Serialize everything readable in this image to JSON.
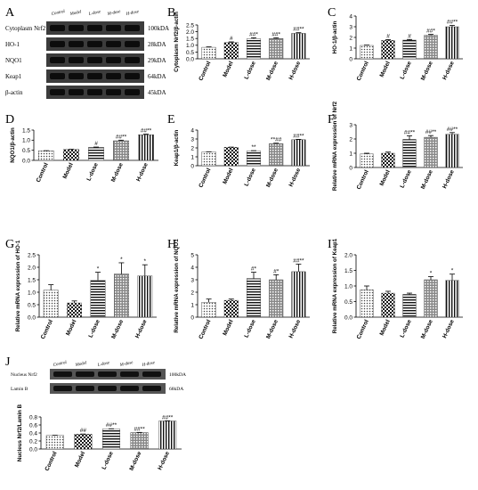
{
  "figure": {
    "panel_letters": [
      "A",
      "B",
      "C",
      "D",
      "E",
      "F",
      "G",
      "H",
      "I",
      "J"
    ]
  },
  "chart_data": [
    {
      "panel": "A",
      "type": "table",
      "title": "",
      "lanes": [
        "Control",
        "Model",
        "L-dose",
        "M-dose",
        "H-dose"
      ],
      "rows": [
        {
          "label": "Cytoplasm Nrf2",
          "size": "100kDA"
        },
        {
          "label": "HO-1",
          "size": "28kDA"
        },
        {
          "label": "NQO1",
          "size": "29kDA"
        },
        {
          "label": "Keap1",
          "size": "64kDA"
        },
        {
          "label": "β-actin",
          "size": "45kDA"
        }
      ]
    },
    {
      "panel": "B",
      "type": "bar",
      "categories": [
        "Control",
        "Model",
        "L-dose",
        "M-dose",
        "H-dose"
      ],
      "values": [
        0.85,
        1.2,
        1.48,
        1.5,
        1.88
      ],
      "errors": [
        0.03,
        0.05,
        0.07,
        0.05,
        0.05
      ],
      "annotations": [
        "",
        "#",
        "##*",
        "##*",
        "##**"
      ],
      "ylabel": "Cytoplasm Nrf2/β-actin",
      "ylim": [
        0,
        2.5
      ],
      "yticks": [
        "0.0",
        "0.5",
        "1.0",
        "1.5",
        "2.0",
        "2.5"
      ],
      "grid": false
    },
    {
      "panel": "C",
      "type": "bar",
      "categories": [
        "Control",
        "Model",
        "L-dose",
        "M-dose",
        "H-dose"
      ],
      "values": [
        1.25,
        1.72,
        1.75,
        2.2,
        3.0
      ],
      "errors": [
        0.03,
        0.08,
        0.06,
        0.08,
        0.12
      ],
      "annotations": [
        "",
        "#",
        "#",
        "##*",
        "##**"
      ],
      "ylabel": "HO-1/β-actin",
      "ylim": [
        0,
        4
      ],
      "yticks": [
        "0",
        "1",
        "2",
        "3",
        "4"
      ],
      "grid": false
    },
    {
      "panel": "D",
      "type": "bar",
      "categories": [
        "Control",
        "Model",
        "L-dose",
        "M-dose",
        "H-dose"
      ],
      "values": [
        0.47,
        0.54,
        0.64,
        0.97,
        1.27
      ],
      "errors": [
        0.01,
        0.01,
        0.02,
        0.03,
        0.03
      ],
      "annotations": [
        "",
        "",
        "#",
        "##**",
        "##**"
      ],
      "ylabel": "NQO1/β-actin",
      "ylim": [
        0,
        1.5
      ],
      "yticks": [
        "0.0",
        "0.5",
        "1.0",
        "1.5"
      ],
      "grid": false
    },
    {
      "panel": "E",
      "type": "bar",
      "categories": [
        "Control",
        "Model",
        "L-dose",
        "M-dose",
        "H-dose"
      ],
      "values": [
        1.55,
        2.07,
        1.65,
        2.48,
        2.93
      ],
      "errors": [
        0.02,
        0.02,
        0.04,
        0.05,
        0.03
      ],
      "annotations": [
        "",
        "",
        "**",
        "**##",
        "##**"
      ],
      "ylabel": "Keap1/β-actin",
      "ylim": [
        0,
        4
      ],
      "yticks": [
        "0",
        "1",
        "2",
        "3",
        "4"
      ],
      "grid": false
    },
    {
      "panel": "F",
      "type": "bar",
      "categories": [
        "Control",
        "Model",
        "L-dose",
        "M-dose",
        "H-dose"
      ],
      "values": [
        0.95,
        1.0,
        1.97,
        2.12,
        2.33
      ],
      "errors": [
        0.05,
        0.08,
        0.25,
        0.12,
        0.12
      ],
      "annotations": [
        "",
        "",
        "##**",
        "##**",
        "##**"
      ],
      "ylabel": "Relative mRNA expression of Nrf2",
      "ylim": [
        0,
        3
      ],
      "yticks": [
        "0",
        "1",
        "2",
        "3"
      ],
      "grid": false
    },
    {
      "panel": "G",
      "type": "bar",
      "categories": [
        "Control",
        "Model",
        "L-dose",
        "M-dose",
        "H-dose"
      ],
      "values": [
        1.08,
        0.57,
        1.48,
        1.73,
        1.65
      ],
      "errors": [
        0.22,
        0.08,
        0.32,
        0.45,
        0.45
      ],
      "annotations": [
        "",
        "",
        "*",
        "*",
        "*"
      ],
      "ylabel": "Relative mRNA expression of HO-1",
      "ylim": [
        0,
        2.5
      ],
      "yticks": [
        "0.0",
        "0.5",
        "1.0",
        "1.5",
        "2.0",
        "2.5"
      ],
      "grid": false
    },
    {
      "panel": "H",
      "type": "bar",
      "categories": [
        "Control",
        "Model",
        "L-dose",
        "M-dose",
        "H-dose"
      ],
      "values": [
        1.2,
        1.35,
        3.1,
        3.0,
        3.65
      ],
      "errors": [
        0.25,
        0.1,
        0.5,
        0.4,
        0.6
      ],
      "annotations": [
        "",
        "",
        "#*",
        "#*",
        "##**"
      ],
      "ylabel": "Relative mRNA expression of NQO1",
      "ylim": [
        0,
        5
      ],
      "yticks": [
        "0",
        "1",
        "2",
        "3",
        "4",
        "5"
      ],
      "grid": false
    },
    {
      "panel": "I",
      "type": "bar",
      "categories": [
        "Control",
        "Model",
        "L-dose",
        "M-dose",
        "H-dose"
      ],
      "values": [
        0.88,
        0.77,
        0.73,
        1.2,
        1.18
      ],
      "errors": [
        0.12,
        0.06,
        0.04,
        0.1,
        0.2
      ],
      "annotations": [
        "",
        "",
        "",
        "*",
        "*"
      ],
      "ylabel": "Relative mRNA expression of Keap1",
      "ylim": [
        0,
        2
      ],
      "yticks": [
        "0.0",
        "0.5",
        "1.0",
        "1.5",
        "2.0"
      ],
      "grid": false
    },
    {
      "panel": "J",
      "type": "bar",
      "blot": {
        "lanes": [
          "Control",
          "Model",
          "L-dose",
          "M-dose",
          "H-dose"
        ],
        "rows": [
          {
            "label": "Nucleus Nrf2",
            "size": "100kDA"
          },
          {
            "label": "Lamin B",
            "size": "68kDA"
          }
        ]
      },
      "categories": [
        "Control",
        "Model",
        "L-dose",
        "M-dose",
        "H-dose"
      ],
      "values": [
        0.34,
        0.37,
        0.5,
        0.41,
        0.7
      ],
      "errors": [
        0.003,
        0.004,
        0.006,
        0.005,
        0.005
      ],
      "annotations": [
        "",
        "##",
        "##**",
        "##**",
        "##**"
      ],
      "ylabel": "Nucleus Nrf2/Lamin B",
      "ylim": [
        0,
        0.8
      ],
      "yticks": [
        "0.0",
        "0.2",
        "0.4",
        "0.6",
        "0.8"
      ],
      "grid": false
    }
  ]
}
